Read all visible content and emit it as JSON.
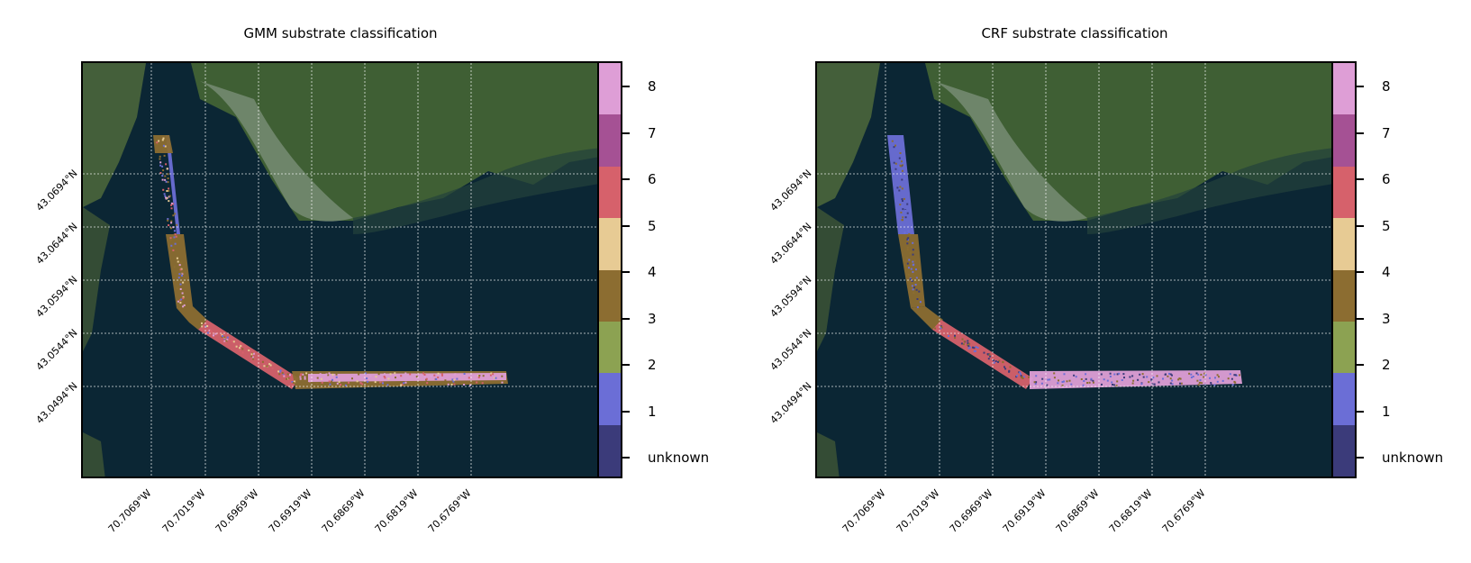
{
  "panels": [
    {
      "title": "GMM substrate classification",
      "colorbar_labels": [
        "8",
        "7",
        "6",
        "5",
        "4",
        "3",
        "2",
        "1",
        "unknown"
      ]
    },
    {
      "title": "CRF substrate classification",
      "colorbar_labels": [
        "8",
        "7",
        "6",
        "5",
        "4",
        "3",
        "2",
        "1",
        "unknown"
      ]
    }
  ],
  "lat_ticks": [
    "43.0694°N",
    "43.0644°N",
    "43.0594°N",
    "43.0544°N",
    "43.0494°N"
  ],
  "lon_ticks": [
    "70.7069°W",
    "70.7019°W",
    "70.6969°W",
    "70.6919°W",
    "70.6869°W",
    "70.6819°W",
    "70.6769°W"
  ],
  "class_colors": {
    "unknown": "#3b3b7a",
    "1": "#6b6ed6",
    "2": "#8ca252",
    "3": "#8c6d31",
    "4": "#e7cb94",
    "5": "#d6616b",
    "6": "#a55194",
    "7": "#de9ed6"
  },
  "colors": {
    "water": "#0b2634",
    "land": "#3a5a32"
  }
}
